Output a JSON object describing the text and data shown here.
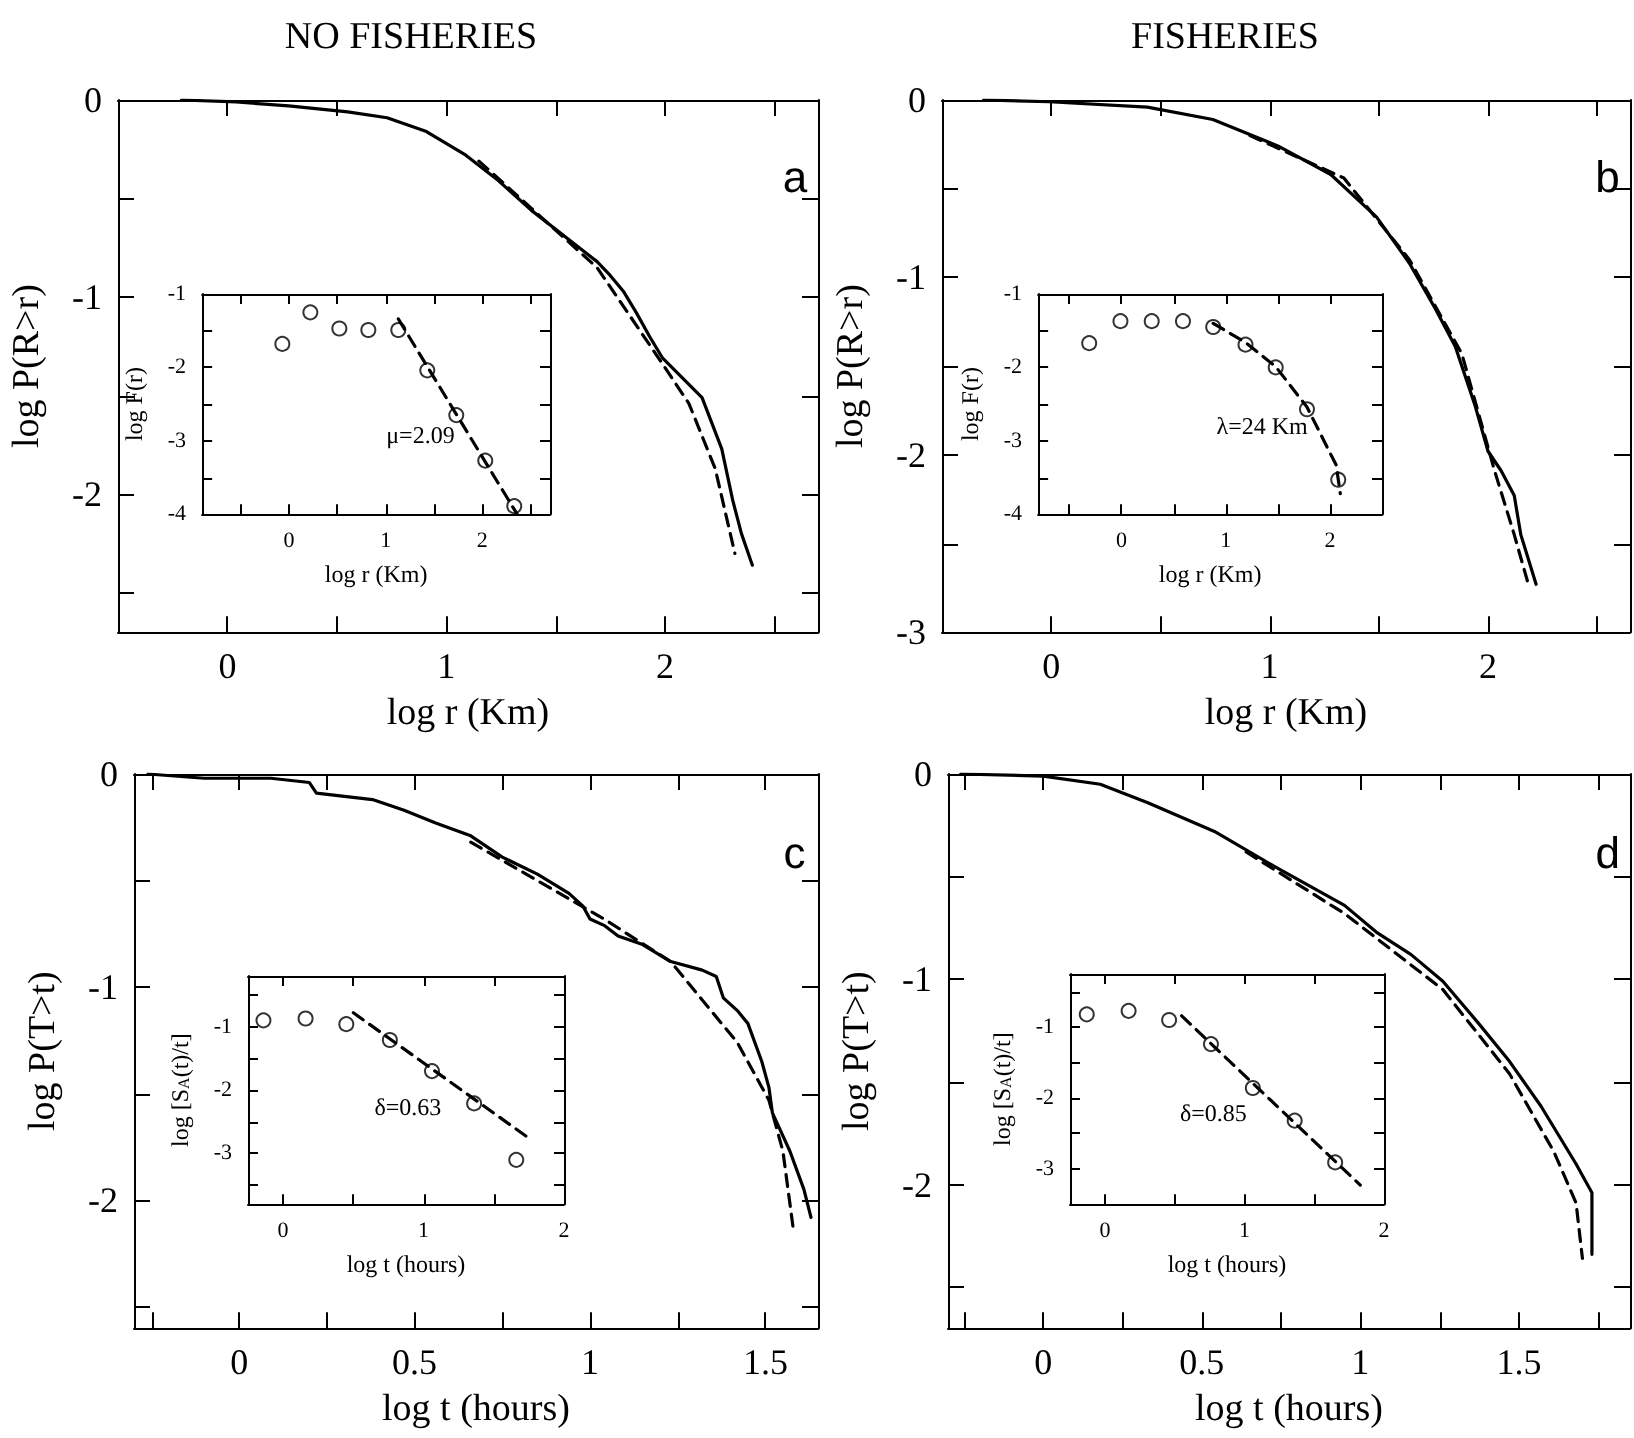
{
  "chart_data": [
    {
      "type": "line",
      "title": "NO FISHERIES",
      "xlabel": "log r (Km)",
      "ylabel": "log P(R>r)",
      "annotations": [
        "a"
      ],
      "xlim": [
        -0.5,
        2.7
      ],
      "ylim": [
        -2.7,
        0
      ],
      "xticks": [
        0,
        {
          "value": 0.5,
          "label": null
        },
        1,
        {
          "value": 1.5,
          "label": null
        },
        2,
        {
          "value": 2.5,
          "label": null
        }
      ],
      "yticks": [
        0,
        {
          "value": -0.5,
          "label": null
        },
        -1,
        {
          "value": -1.5,
          "label": null
        },
        -2,
        {
          "value": -2.5,
          "label": null
        }
      ],
      "series": [
        {
          "color": "#000000",
          "line_style": "solid",
          "x": [
            -0.21,
            0.04,
            0.28,
            0.55,
            0.73,
            0.91,
            1.09,
            1.24,
            1.39,
            1.54,
            1.69,
            1.75,
            1.81,
            1.87,
            1.93,
            1.99,
            2.08,
            2.17,
            2.26,
            2.31,
            2.35,
            2.4
          ],
          "values": [
            0,
            -0.01,
            -0.03,
            -0.06,
            -0.09,
            -0.16,
            -0.28,
            -0.41,
            -0.56,
            -0.69,
            -0.82,
            -0.89,
            -0.97,
            -1.08,
            -1.2,
            -1.31,
            -1.41,
            -1.51,
            -1.77,
            -2.03,
            -2.2,
            -2.36
          ]
        },
        {
          "color": "#000000",
          "line_style": "dashed",
          "x": [
            1.15,
            1.39,
            1.69,
            1.99,
            2.11,
            2.23,
            2.32
          ],
          "values": [
            -0.31,
            -0.55,
            -0.85,
            -1.34,
            -1.54,
            -1.87,
            -2.3
          ]
        }
      ]
    },
    {
      "type": "line",
      "title": "FISHERIES",
      "xlabel": "log r (Km)",
      "ylabel": "log P(R>r)",
      "annotations": [
        "b"
      ],
      "xlim": [
        -0.5,
        2.65
      ],
      "ylim": [
        -3,
        0
      ],
      "xticks": [
        0,
        {
          "value": 0.5,
          "label": null
        },
        1,
        {
          "value": 1.5,
          "label": null
        },
        2,
        {
          "value": 2.5,
          "label": null
        }
      ],
      "yticks": [
        0,
        {
          "value": -0.5,
          "label": null
        },
        -1,
        {
          "value": -1.5,
          "label": null
        },
        -2,
        {
          "value": -2.5,
          "label": null
        },
        -3
      ],
      "series": [
        {
          "color": "#000000",
          "line_style": "solid",
          "x": [
            -0.31,
            -0.01,
            0.44,
            0.74,
            1.04,
            1.28,
            1.49,
            1.64,
            1.76,
            1.85,
            1.94,
            2.0,
            2.06,
            2.12,
            2.15,
            2.22
          ],
          "values": [
            0,
            -0.01,
            -0.04,
            -0.11,
            -0.26,
            -0.42,
            -0.66,
            -0.92,
            -1.18,
            -1.39,
            -1.72,
            -1.98,
            -2.09,
            -2.23,
            -2.45,
            -2.73
          ]
        },
        {
          "color": "#000000",
          "line_style": "dashed",
          "x": [
            0.91,
            1.34,
            1.64,
            1.88,
            2.03,
            2.12,
            2.18
          ],
          "values": [
            -0.2,
            -0.44,
            -0.9,
            -1.43,
            -2.09,
            -2.45,
            -2.71
          ]
        }
      ]
    },
    {
      "type": "line",
      "xlabel": "log t (hours)",
      "ylabel": "log P(T>t)",
      "annotations": [
        "c"
      ],
      "xlim": [
        -0.3,
        1.65
      ],
      "ylim": [
        -2.6,
        0
      ],
      "xticks": [
        {
          "value": -0.25,
          "label": null
        },
        0,
        {
          "value": 0.25,
          "label": null
        },
        0.5,
        {
          "value": 0.75,
          "label": null
        },
        1,
        {
          "value": 1.25,
          "label": null
        },
        1.5
      ],
      "yticks": [
        0,
        {
          "value": -0.5,
          "label": null
        },
        -1,
        {
          "value": -1.5,
          "label": null
        },
        -2,
        {
          "value": -2.5,
          "label": null
        }
      ],
      "series": [
        {
          "color": "#000000",
          "line_style": "solid",
          "x": [
            -0.26,
            -0.1,
            0.09,
            0.2,
            0.22,
            0.38,
            0.47,
            0.56,
            0.66,
            0.75,
            0.85,
            0.94,
            0.98,
            1.0,
            1.04,
            1.08,
            1.15,
            1.23,
            1.32,
            1.36,
            1.38,
            1.42,
            1.45,
            1.49,
            1.51,
            1.52,
            1.57,
            1.61,
            1.63
          ],
          "values": [
            0,
            -0.02,
            -0.02,
            -0.04,
            -0.09,
            -0.12,
            -0.17,
            -0.23,
            -0.29,
            -0.39,
            -0.47,
            -0.56,
            -0.62,
            -0.68,
            -0.71,
            -0.76,
            -0.8,
            -0.88,
            -0.92,
            -0.95,
            -1.05,
            -1.11,
            -1.17,
            -1.35,
            -1.47,
            -1.59,
            -1.77,
            -1.95,
            -2.08
          ]
        },
        {
          "color": "#000000",
          "line_style": "dashed",
          "x": [
            0.66,
            1.04,
            1.23,
            1.42,
            1.51,
            1.55,
            1.58
          ],
          "values": [
            -0.32,
            -0.68,
            -0.88,
            -1.26,
            -1.53,
            -1.77,
            -2.14
          ]
        }
      ]
    },
    {
      "type": "line",
      "xlabel": "log t (hours)",
      "ylabel": "log P(T>t)",
      "annotations": [
        "d"
      ],
      "xlim": [
        -0.3,
        1.85
      ],
      "ylim": [
        -2.7,
        0
      ],
      "xticks": [
        {
          "value": -0.25,
          "label": null
        },
        0,
        {
          "value": 0.25,
          "label": null
        },
        0.5,
        {
          "value": 0.75,
          "label": null
        },
        1,
        {
          "value": 1.25,
          "label": null
        },
        1.5,
        {
          "value": 1.75,
          "label": null
        }
      ],
      "yticks": [
        0,
        {
          "value": -0.5,
          "label": null
        },
        -1,
        {
          "value": -1.5,
          "label": null
        },
        -2,
        {
          "value": -2.5,
          "label": null
        }
      ],
      "series": [
        {
          "color": "#000000",
          "line_style": "solid",
          "x": [
            -0.26,
            0,
            0.18,
            0.33,
            0.54,
            0.74,
            0.95,
            1.05,
            1.16,
            1.26,
            1.37,
            1.47,
            1.57,
            1.68,
            1.73,
            1.73
          ],
          "values": [
            0,
            -0.01,
            -0.05,
            -0.14,
            -0.28,
            -0.46,
            -0.64,
            -0.77,
            -0.88,
            -1.01,
            -1.21,
            -1.4,
            -1.62,
            -1.9,
            -2.04,
            -2.34
          ]
        },
        {
          "color": "#000000",
          "line_style": "dashed",
          "x": [
            0.64,
            0.95,
            1.26,
            1.47,
            1.61,
            1.68,
            1.7
          ],
          "values": [
            -0.38,
            -0.68,
            -1.05,
            -1.46,
            -1.84,
            -2.09,
            -2.36
          ]
        }
      ]
    },
    {
      "type": "scatter",
      "xlabel": "log r (Km)",
      "ylabel": "log F(r)",
      "annotations": [
        "μ=2.09"
      ],
      "xlim": [
        -0.9,
        2.7
      ],
      "ylim": [
        -4,
        -1
      ],
      "xticks": [
        {
          "value": -0.5,
          "label": null
        },
        0,
        {
          "value": 0.5,
          "label": null
        },
        1,
        {
          "value": 1.5,
          "label": null
        },
        2,
        {
          "value": 2.5,
          "label": null
        }
      ],
      "yticks": [
        -1,
        {
          "value": -1.5,
          "label": null
        },
        -2,
        {
          "value": -2.5,
          "label": null
        },
        -3,
        {
          "value": -3.5,
          "label": null
        },
        -4
      ],
      "series": [
        {
          "color": "#000000",
          "marker": "circle",
          "x": [
            -0.07,
            0.22,
            0.52,
            0.82,
            1.13,
            1.43,
            1.73,
            2.03,
            2.33
          ],
          "values": [
            -1.68,
            -1.25,
            -1.47,
            -1.49,
            -1.49,
            -2.04,
            -2.65,
            -3.27,
            -3.89
          ]
        },
        {
          "type": "line",
          "color": "#000000",
          "line_style": "dashed",
          "x": [
            1.13,
            2.36
          ],
          "values": [
            -1.34,
            -4.0
          ]
        }
      ]
    },
    {
      "type": "scatter",
      "xlabel": "log r (Km)",
      "ylabel": "log F(r)",
      "annotations": [
        "λ=24 Km"
      ],
      "xlim": [
        -0.8,
        2.5
      ],
      "ylim": [
        -4,
        -1
      ],
      "xticks": [
        {
          "value": -0.5,
          "label": null
        },
        0,
        {
          "value": 0.5,
          "label": null
        },
        1,
        {
          "value": 1.5,
          "label": null
        },
        2
      ],
      "yticks": [
        -1,
        {
          "value": -1.5,
          "label": null
        },
        -2,
        {
          "value": -2.5,
          "label": null
        },
        -3,
        {
          "value": -3.5,
          "label": null
        },
        -4
      ],
      "series": [
        {
          "color": "#000000",
          "marker": "circle",
          "x": [
            -0.31,
            -0.01,
            0.29,
            0.59,
            0.88,
            1.19,
            1.48,
            1.78,
            2.08
          ],
          "values": [
            -1.67,
            -1.37,
            -1.37,
            -1.37,
            -1.45,
            -1.69,
            -2.0,
            -2.57,
            -3.53
          ]
        },
        {
          "type": "line",
          "color": "#000000",
          "line_style": "dashed",
          "x": [
            0.88,
            1.19,
            1.48,
            1.78,
            2.06,
            2.1
          ],
          "values": [
            -1.4,
            -1.66,
            -1.99,
            -2.54,
            -3.33,
            -3.72
          ]
        }
      ]
    },
    {
      "type": "scatter",
      "xlabel": "log t (hours)",
      "ylabel": "log [S$_{A}$(t)/t]",
      "annotations": [
        "δ=0.63"
      ],
      "xlim": [
        -0.25,
        2
      ],
      "ylim": [
        -3.8,
        -0.2
      ],
      "xticks": [
        0,
        {
          "value": 0.5,
          "label": null
        },
        1,
        {
          "value": 1.5,
          "label": null
        },
        2
      ],
      "yticks": [
        {
          "value": -0.5,
          "label": null
        },
        -1,
        {
          "value": -1.5,
          "label": null
        },
        -2,
        {
          "value": -2.5,
          "label": null
        },
        -3,
        {
          "value": -3.5,
          "label": null
        }
      ],
      "series": [
        {
          "color": "#000000",
          "marker": "circle",
          "x": [
            -0.14,
            0.16,
            0.45,
            0.76,
            1.06,
            1.36,
            1.66
          ],
          "values": [
            -0.9,
            -0.87,
            -0.96,
            -1.21,
            -1.7,
            -2.21,
            -3.1
          ]
        },
        {
          "type": "line",
          "color": "#000000",
          "line_style": "dashed",
          "x": [
            0.5,
            1.77
          ],
          "values": [
            -0.78,
            -2.79
          ]
        }
      ]
    },
    {
      "type": "scatter",
      "xlabel": "log t (hours)",
      "ylabel": "log [S$_{A}$(t)/t]",
      "annotations": [
        "δ=0.85"
      ],
      "xlim": [
        -0.25,
        2
      ],
      "ylim": [
        -3.5,
        -0.25
      ],
      "xticks": [
        0,
        {
          "value": 0.5,
          "label": null
        },
        1,
        {
          "value": 1.5,
          "label": null
        },
        2
      ],
      "yticks": [
        {
          "value": -0.5,
          "label": null
        },
        -1,
        {
          "value": -1.5,
          "label": null
        },
        -2,
        {
          "value": -2.5,
          "label": null
        },
        -3
      ],
      "series": [
        {
          "color": "#000000",
          "marker": "circle",
          "x": [
            -0.13,
            0.17,
            0.46,
            0.76,
            1.06,
            1.36,
            1.65
          ],
          "values": [
            -0.82,
            -0.77,
            -0.9,
            -1.24,
            -1.86,
            -2.32,
            -2.91
          ]
        },
        {
          "type": "line",
          "color": "#000000",
          "line_style": "dashed",
          "x": [
            0.55,
            1.83
          ],
          "values": [
            -0.84,
            -3.23
          ]
        }
      ]
    }
  ]
}
